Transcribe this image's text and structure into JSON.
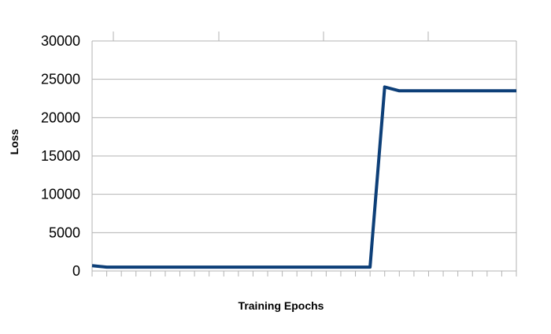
{
  "chart_data": {
    "type": "line",
    "title": "",
    "xlabel": "Training Epochs",
    "ylabel": "Loss",
    "ylim": [
      0,
      30000
    ],
    "yticks": [
      "0",
      "5000",
      "10000",
      "15000",
      "20000",
      "25000",
      "30000"
    ],
    "x": [
      0,
      1,
      2,
      3,
      4,
      5,
      6,
      7,
      8,
      9,
      10,
      11,
      12,
      13,
      14,
      15,
      16,
      17,
      18,
      19,
      20,
      21,
      22,
      23,
      24,
      25,
      26,
      27,
      28,
      29
    ],
    "xlim": [
      0,
      29
    ],
    "grid": true,
    "legend": "none",
    "series": [
      {
        "color": "#0d3f78",
        "values": [
          700,
          500,
          500,
          500,
          500,
          500,
          500,
          500,
          500,
          500,
          500,
          500,
          500,
          500,
          500,
          500,
          500,
          500,
          500,
          500,
          24000,
          23500,
          23500,
          23500,
          23500,
          23500,
          23500,
          23500,
          23500,
          23500
        ]
      }
    ]
  }
}
